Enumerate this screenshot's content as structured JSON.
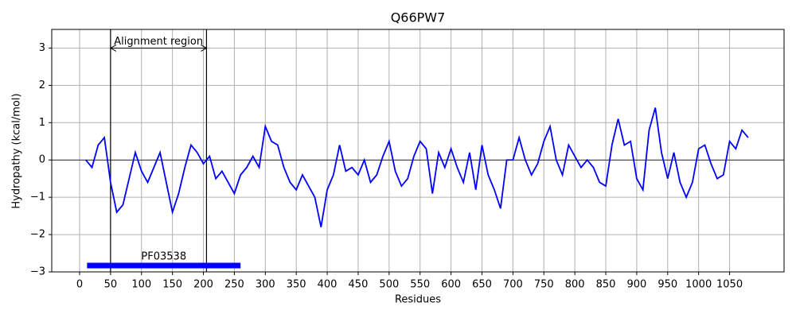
{
  "chart_data": {
    "type": "line",
    "title": "Q66PW7",
    "x_label": "Residues",
    "y_label": "Hydropathy (kcal/mol)",
    "x": [
      10,
      20,
      30,
      40,
      50,
      60,
      70,
      80,
      90,
      100,
      110,
      120,
      130,
      140,
      150,
      160,
      170,
      180,
      190,
      200,
      210,
      220,
      230,
      240,
      250,
      260,
      270,
      280,
      290,
      300,
      310,
      320,
      330,
      340,
      350,
      360,
      370,
      380,
      390,
      400,
      410,
      420,
      430,
      440,
      450,
      460,
      470,
      480,
      490,
      500,
      510,
      520,
      530,
      540,
      550,
      560,
      570,
      580,
      590,
      600,
      610,
      620,
      630,
      640,
      650,
      660,
      670,
      680,
      690,
      700,
      710,
      720,
      730,
      740,
      750,
      760,
      770,
      780,
      790,
      800,
      810,
      820,
      830,
      840,
      850,
      860,
      870,
      880,
      890,
      900,
      910,
      920,
      930,
      940,
      950,
      960,
      970,
      980,
      990,
      1000,
      1010,
      1020,
      1030,
      1040,
      1050,
      1060,
      1070,
      1080
    ],
    "series": [
      {
        "name": "Hydropathy",
        "color": "#0000ff",
        "values": [
          0.0,
          -0.2,
          0.4,
          0.6,
          -0.6,
          -1.4,
          -1.2,
          -0.5,
          0.2,
          -0.3,
          -0.6,
          -0.2,
          0.2,
          -0.6,
          -1.4,
          -0.9,
          -0.2,
          0.4,
          0.2,
          -0.1,
          0.1,
          -0.5,
          -0.3,
          -0.6,
          -0.9,
          -0.4,
          -0.2,
          0.1,
          -0.2,
          0.9,
          0.5,
          0.4,
          -0.2,
          -0.6,
          -0.8,
          -0.4,
          -0.7,
          -1.0,
          -1.8,
          -0.8,
          -0.4,
          0.4,
          -0.3,
          -0.2,
          -0.4,
          0.0,
          -0.6,
          -0.4,
          0.1,
          0.5,
          -0.3,
          -0.7,
          -0.5,
          0.1,
          0.5,
          0.3,
          -0.9,
          0.2,
          -0.2,
          0.3,
          -0.2,
          -0.6,
          0.2,
          -0.8,
          0.4,
          -0.4,
          -0.8,
          -1.3,
          0.0,
          0.0,
          0.6,
          0.0,
          -0.4,
          -0.1,
          0.5,
          0.9,
          0.0,
          -0.4,
          0.4,
          0.1,
          -0.2,
          0.0,
          -0.2,
          -0.6,
          -0.7,
          0.4,
          1.1,
          0.4,
          0.5,
          -0.5,
          -0.8,
          0.8,
          1.4,
          0.2,
          -0.5,
          0.2,
          -0.6,
          -1.0,
          -0.6,
          0.3,
          0.4,
          -0.1,
          -0.5,
          -0.4,
          0.5,
          0.3,
          0.8,
          0.6
        ]
      }
    ],
    "xlim": [
      -45,
      1138
    ],
    "ylim": [
      -3,
      3.5
    ],
    "xticks": [
      0,
      50,
      100,
      150,
      200,
      250,
      300,
      350,
      400,
      450,
      500,
      550,
      600,
      650,
      700,
      750,
      800,
      850,
      900,
      950,
      1000,
      1050
    ],
    "yticks": [
      {
        "value": -3,
        "label": "−3"
      },
      {
        "value": -2,
        "label": "−2"
      },
      {
        "value": -1,
        "label": "−1"
      },
      0,
      1,
      2,
      3
    ],
    "grid": true,
    "region": {
      "label": "Alignment region",
      "start": 50,
      "end": 205,
      "y": 3
    },
    "domain": {
      "label": "PF03538",
      "start": 12,
      "end": 260,
      "y": -2.83,
      "color": "#0000ff"
    }
  }
}
